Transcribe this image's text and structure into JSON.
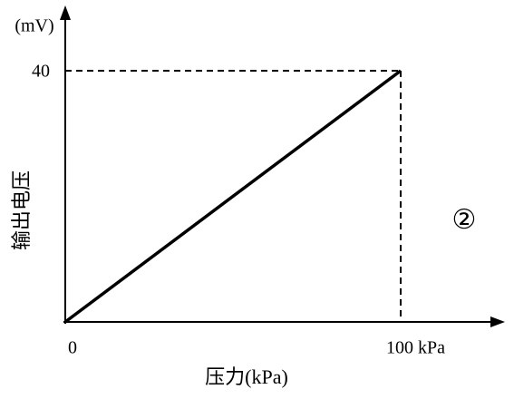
{
  "chart_data": {
    "type": "line",
    "x": [
      0,
      100
    ],
    "values": [
      0,
      40
    ],
    "color": "#000000",
    "xlim": [
      0,
      130
    ],
    "ylim": [
      0,
      50
    ],
    "xticks": [
      0,
      {
        "value": 100,
        "label": "100 kPa"
      }
    ],
    "yticks": [
      40
    ],
    "y_unit": "(mV)",
    "y_label": "输出电压",
    "x_label": "压力(kPa)",
    "annotation": "②",
    "guides": true,
    "grid": false
  }
}
